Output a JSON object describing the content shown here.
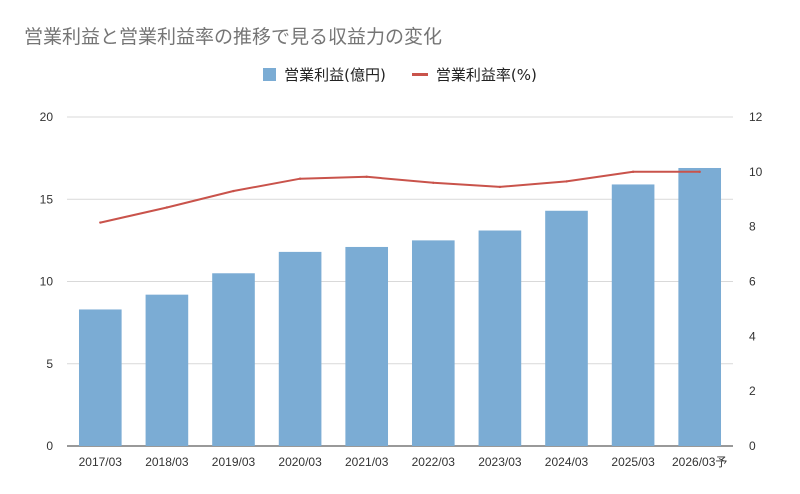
{
  "chart_data": {
    "type": "bar",
    "title": "営業利益と営業利益率の推移で見る収益力の変化",
    "categories": [
      "2017/03",
      "2018/03",
      "2019/03",
      "2020/03",
      "2021/03",
      "2022/03",
      "2023/03",
      "2024/03",
      "2025/03",
      "2026/03予"
    ],
    "series": [
      {
        "name": "営業利益(億円)",
        "type": "bar",
        "axis": "left",
        "color": "#7bacd4",
        "values": [
          8.3,
          9.2,
          10.5,
          11.8,
          12.1,
          12.5,
          13.1,
          14.3,
          15.9,
          16.9
        ]
      },
      {
        "name": "営業利益率(%)",
        "type": "line",
        "axis": "right",
        "color": "#c9534b",
        "values": [
          8.15,
          8.7,
          9.3,
          9.75,
          9.82,
          9.6,
          9.45,
          9.65,
          10.0,
          10.0
        ]
      }
    ],
    "ylim_left": [
      0,
      20
    ],
    "yticks_left": [
      0,
      5,
      10,
      15,
      20
    ],
    "ylim_right": [
      0,
      12
    ],
    "yticks_right": [
      0,
      2,
      4,
      6,
      8,
      10,
      12
    ],
    "grid": true,
    "legend_position": "top-center"
  }
}
